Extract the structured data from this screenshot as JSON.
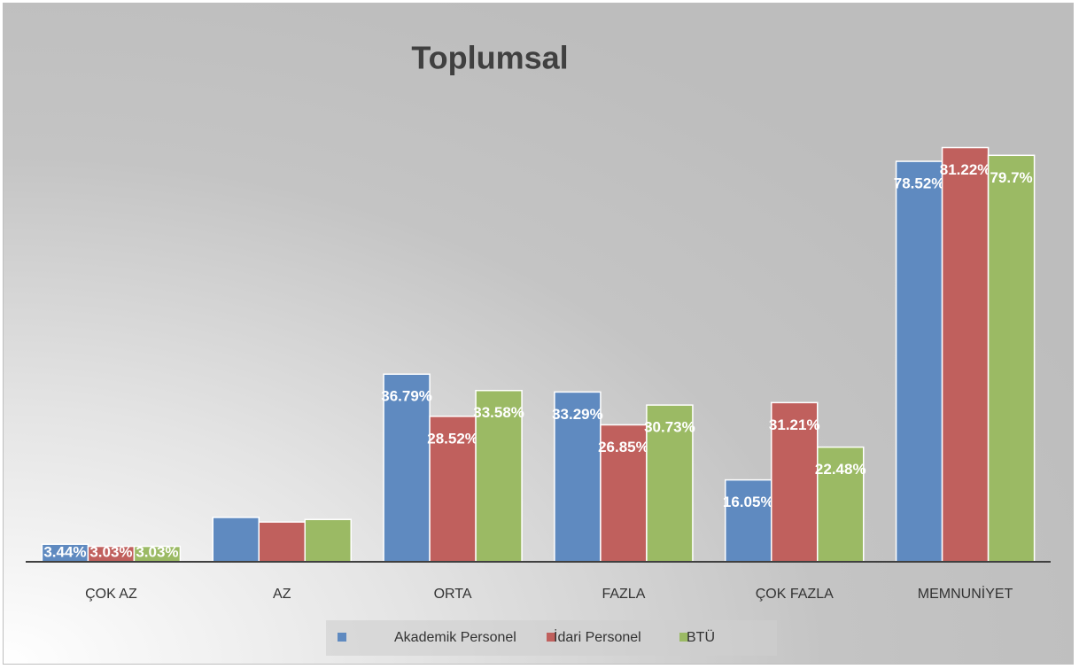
{
  "chart_data": {
    "type": "bar",
    "title": "Toplumsal",
    "categories": [
      "ÇOK AZ",
      "AZ",
      "ORTA",
      "FAZLA",
      "ÇOK FAZLA",
      "MEMNUNİYET"
    ],
    "series": [
      {
        "name": "Akademik Personel",
        "color": "#5f8ac0",
        "values": [
          3.44,
          8.7,
          36.79,
          33.29,
          16.05,
          78.52
        ],
        "value_labels": [
          "3.44%",
          null,
          "36.79%",
          "33.29%",
          "16.05%",
          "78.52%"
        ]
      },
      {
        "name": "İdari Personel",
        "color": "#c0605d",
        "values": [
          3.03,
          7.8,
          28.52,
          26.85,
          31.21,
          81.22
        ],
        "value_labels": [
          "3.03%",
          null,
          "28.52%",
          "26.85%",
          "31.21%",
          "81.22%"
        ]
      },
      {
        "name": "BTÜ",
        "color": "#9bba64",
        "values": [
          3.03,
          8.3,
          33.58,
          30.73,
          22.48,
          79.7
        ],
        "value_labels": [
          "3.03%",
          null,
          "33.58%",
          "30.73%",
          "22.48%",
          "79.7%"
        ]
      }
    ],
    "ylim": [
      0,
      90
    ],
    "legend": "bottom"
  }
}
